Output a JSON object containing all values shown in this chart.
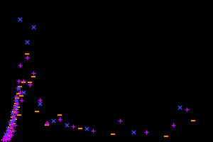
{
  "background_color": "#000000",
  "figsize": [
    3.0,
    2.0
  ],
  "dpi": 100,
  "seed": 7,
  "plus_color": "#cc00ff",
  "dash_color": "#ff8800",
  "cross_color": "#4444ff",
  "xlim": [
    0,
    32
  ],
  "ylim": [
    0,
    370
  ],
  "plus_points": [
    [
      0.4,
      8
    ],
    [
      0.5,
      5
    ],
    [
      0.6,
      12
    ],
    [
      0.7,
      10
    ],
    [
      0.8,
      15
    ],
    [
      0.9,
      6
    ],
    [
      1.0,
      18
    ],
    [
      1.0,
      22
    ],
    [
      1.1,
      12
    ],
    [
      1.2,
      30
    ],
    [
      1.3,
      8
    ],
    [
      1.3,
      25
    ],
    [
      1.4,
      35
    ],
    [
      1.5,
      20
    ],
    [
      1.5,
      15
    ],
    [
      1.6,
      40
    ],
    [
      1.6,
      28
    ],
    [
      1.7,
      50
    ],
    [
      1.7,
      18
    ],
    [
      1.8,
      60
    ],
    [
      1.8,
      35
    ],
    [
      1.9,
      45
    ],
    [
      1.9,
      55
    ],
    [
      2.0,
      70
    ],
    [
      2.0,
      30
    ],
    [
      2.0,
      85
    ],
    [
      2.1,
      65
    ],
    [
      2.2,
      90
    ],
    [
      2.2,
      45
    ],
    [
      2.3,
      75
    ],
    [
      2.3,
      110
    ],
    [
      2.4,
      95
    ],
    [
      2.5,
      80
    ],
    [
      2.5,
      120
    ],
    [
      2.6,
      100
    ],
    [
      2.7,
      140
    ],
    [
      2.8,
      160
    ],
    [
      3.0,
      130
    ],
    [
      3.0,
      200
    ],
    [
      3.2,
      110
    ],
    [
      3.5,
      160
    ],
    [
      4.0,
      220
    ],
    [
      4.5,
      150
    ],
    [
      5.0,
      180
    ],
    [
      6.0,
      110
    ],
    [
      7.0,
      50
    ],
    [
      9.0,
      60
    ],
    [
      11.0,
      40
    ],
    [
      14.0,
      30
    ],
    [
      18.0,
      55
    ],
    [
      22.0,
      25
    ],
    [
      26.0,
      45
    ],
    [
      28.0,
      85
    ]
  ],
  "dash_points": [
    [
      0.5,
      6
    ],
    [
      0.7,
      9
    ],
    [
      0.9,
      14
    ],
    [
      1.0,
      10
    ],
    [
      1.1,
      20
    ],
    [
      1.2,
      8
    ],
    [
      1.3,
      30
    ],
    [
      1.4,
      16
    ],
    [
      1.5,
      25
    ],
    [
      1.5,
      38
    ],
    [
      1.6,
      35
    ],
    [
      1.7,
      45
    ],
    [
      1.8,
      55
    ],
    [
      1.8,
      28
    ],
    [
      1.9,
      65
    ],
    [
      2.0,
      48
    ],
    [
      2.0,
      75
    ],
    [
      2.1,
      80
    ],
    [
      2.2,
      60
    ],
    [
      2.3,
      95
    ],
    [
      2.4,
      85
    ],
    [
      2.5,
      100
    ],
    [
      2.6,
      115
    ],
    [
      2.7,
      90
    ],
    [
      2.8,
      125
    ],
    [
      2.9,
      70
    ],
    [
      3.0,
      145
    ],
    [
      3.2,
      120
    ],
    [
      3.5,
      155
    ],
    [
      4.0,
      230
    ],
    [
      4.5,
      155
    ],
    [
      5.0,
      170
    ],
    [
      5.5,
      80
    ],
    [
      7.0,
      45
    ],
    [
      9.0,
      70
    ],
    [
      12.0,
      35
    ],
    [
      17.0,
      20
    ],
    [
      25.0,
      15
    ],
    [
      29.0,
      55
    ]
  ],
  "cross_points": [
    [
      0.8,
      20
    ],
    [
      1.2,
      35
    ],
    [
      1.5,
      50
    ],
    [
      1.8,
      75
    ],
    [
      2.0,
      60
    ],
    [
      2.3,
      90
    ],
    [
      2.5,
      110
    ],
    [
      2.8,
      140
    ],
    [
      3.0,
      320
    ],
    [
      3.5,
      130
    ],
    [
      4.0,
      260
    ],
    [
      5.0,
      300
    ],
    [
      6.0,
      100
    ],
    [
      8.0,
      55
    ],
    [
      10.0,
      45
    ],
    [
      13.0,
      35
    ],
    [
      20.0,
      25
    ],
    [
      27.0,
      90
    ]
  ]
}
